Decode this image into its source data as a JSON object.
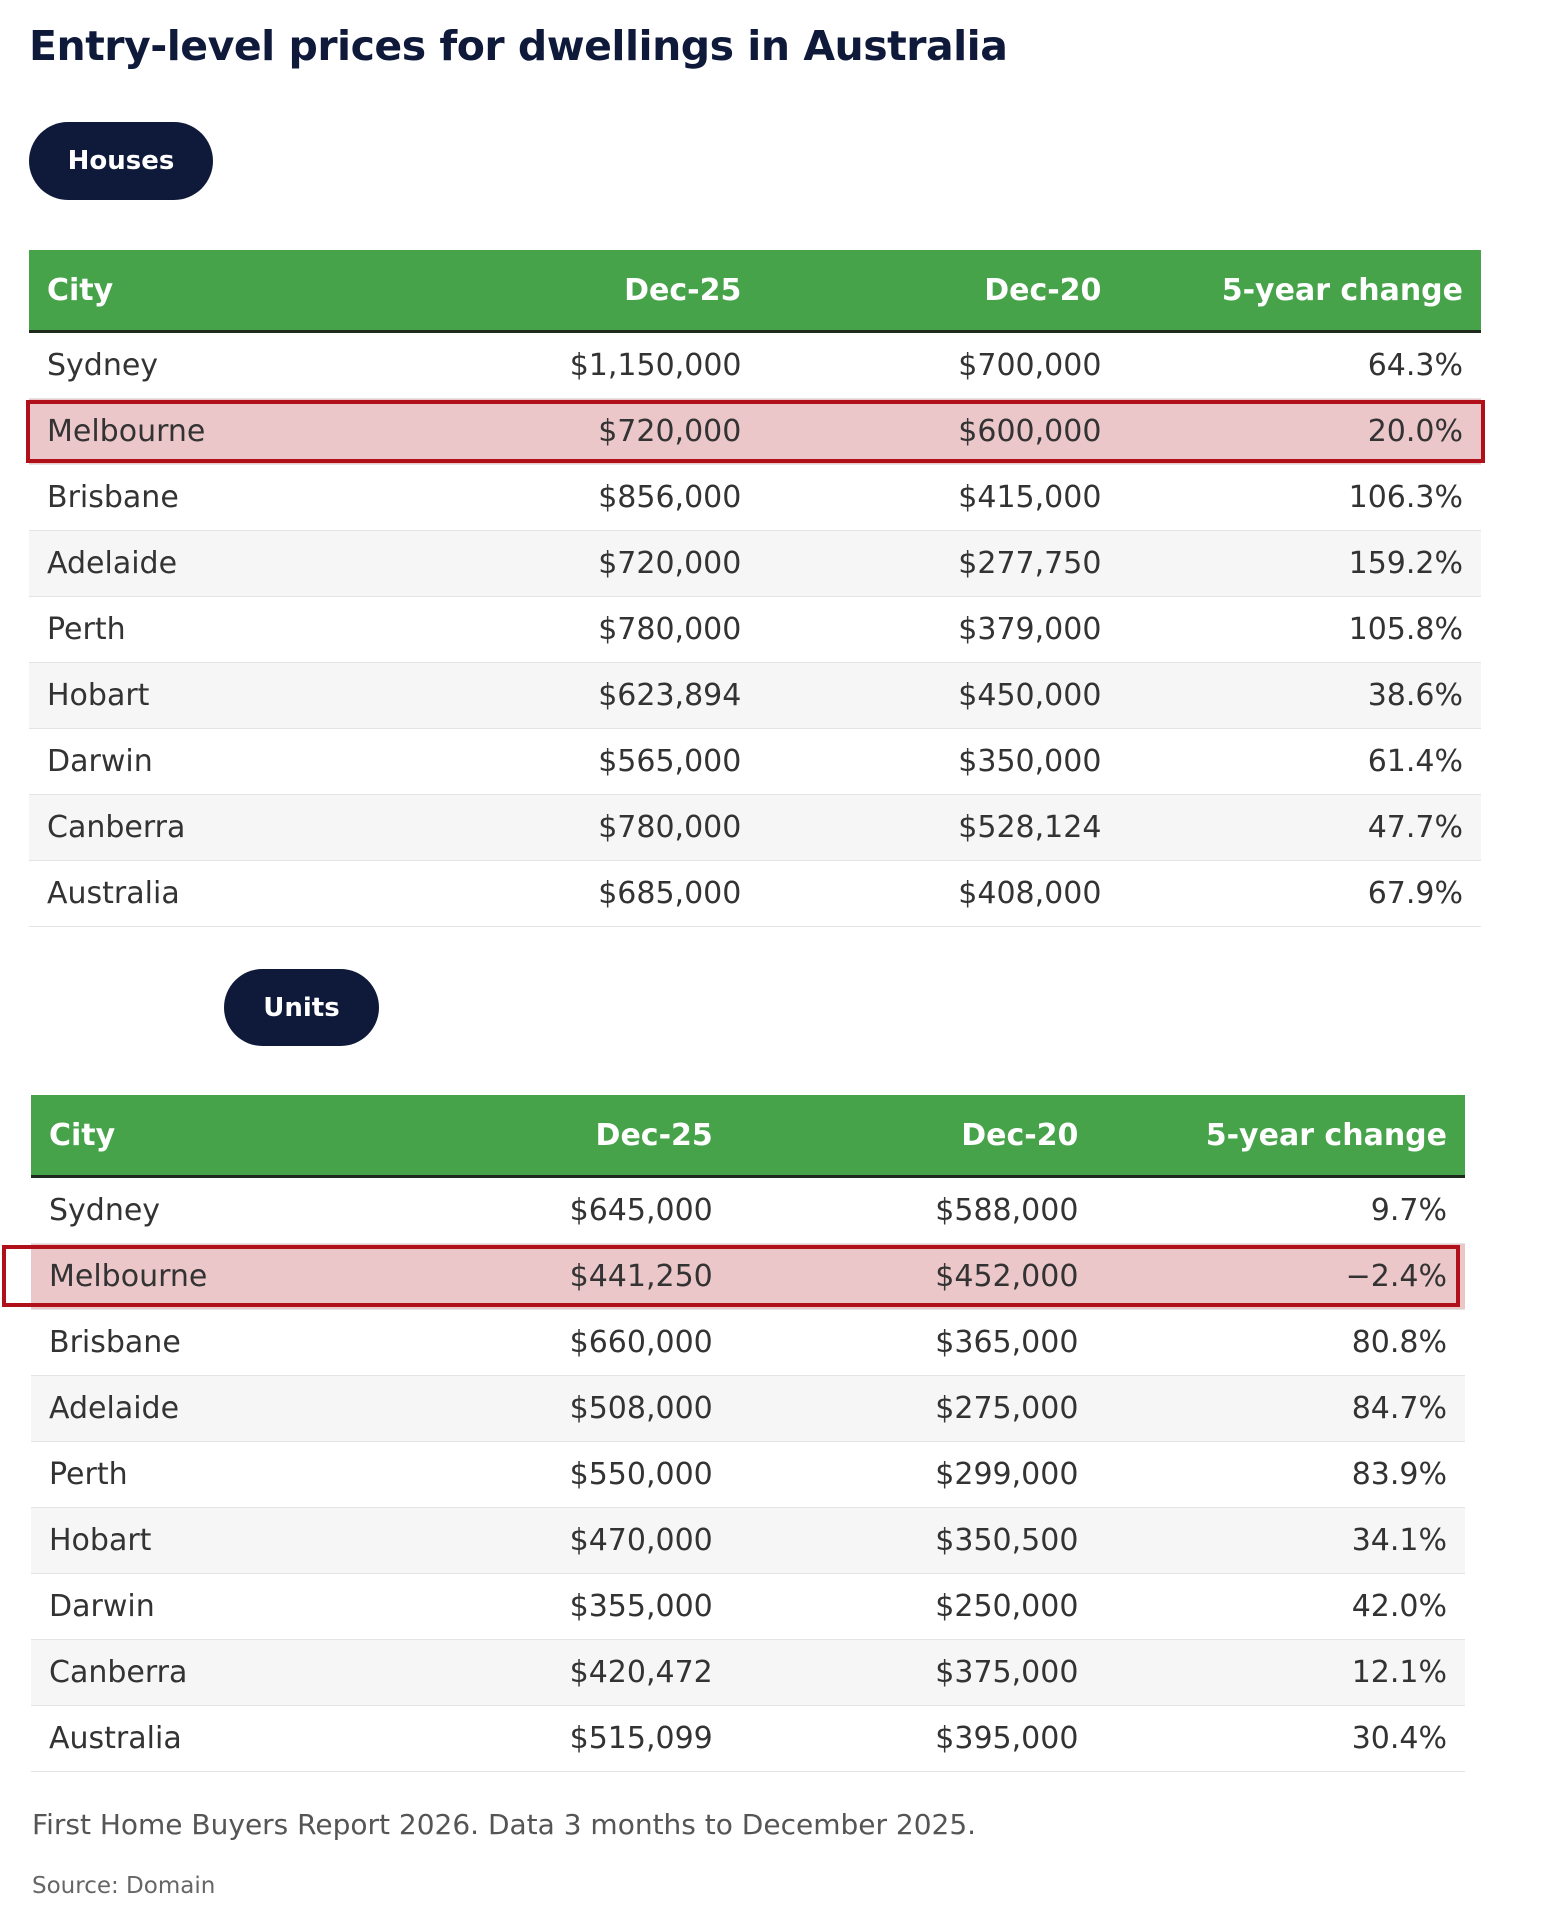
{
  "title": "Entry-level prices for dwellings in Australia",
  "sections": [
    {
      "button": "Houses",
      "table": {
        "header": [
          "City",
          "Dec-25",
          "Dec-20",
          "5-year change"
        ],
        "rows": [
          [
            "Sydney",
            "$1,150,000",
            "$700,000",
            "64.3%"
          ],
          [
            "Melbourne",
            "$720,000",
            "$600,000",
            "20.0%"
          ],
          [
            "Brisbane",
            "$856,000",
            "$415,000",
            "106.3%"
          ],
          [
            "Adelaide",
            "$720,000",
            "$277,750",
            "159.2%"
          ],
          [
            "Perth",
            "$780,000",
            "$379,000",
            "105.8%"
          ],
          [
            "Hobart",
            "$623,894",
            "$450,000",
            "38.6%"
          ],
          [
            "Darwin",
            "$565,000",
            "$350,000",
            "61.4%"
          ],
          [
            "Canberra",
            "$780,000",
            "$528,124",
            "47.7%"
          ],
          [
            "Australia",
            "$685,000",
            "$408,000",
            "67.9%"
          ]
        ]
      }
    },
    {
      "button": "Units",
      "table": {
        "header": [
          "City",
          "Dec-25",
          "Dec-20",
          "5-year change"
        ],
        "rows": [
          [
            "Sydney",
            "$645,000",
            "$588,000",
            "9.7%"
          ],
          [
            "Melbourne",
            "$441,250",
            "$452,000",
            "−2.4%"
          ],
          [
            "Brisbane",
            "$660,000",
            "$365,000",
            "80.8%"
          ],
          [
            "Adelaide",
            "$508,000",
            "$275,000",
            "84.7%"
          ],
          [
            "Perth",
            "$550,000",
            "$299,000",
            "83.9%"
          ],
          [
            "Hobart",
            "$470,000",
            "$350,500",
            "34.1%"
          ],
          [
            "Darwin",
            "$355,000",
            "$250,000",
            "42.0%"
          ],
          [
            "Canberra",
            "$420,472",
            "$375,000",
            "12.1%"
          ],
          [
            "Australia",
            "$515,099",
            "$395,000",
            "30.4%"
          ]
        ]
      }
    }
  ],
  "note": "First Home Buyers Report 2026. Data 3 months to December 2025.",
  "source": "Source: Domain"
}
